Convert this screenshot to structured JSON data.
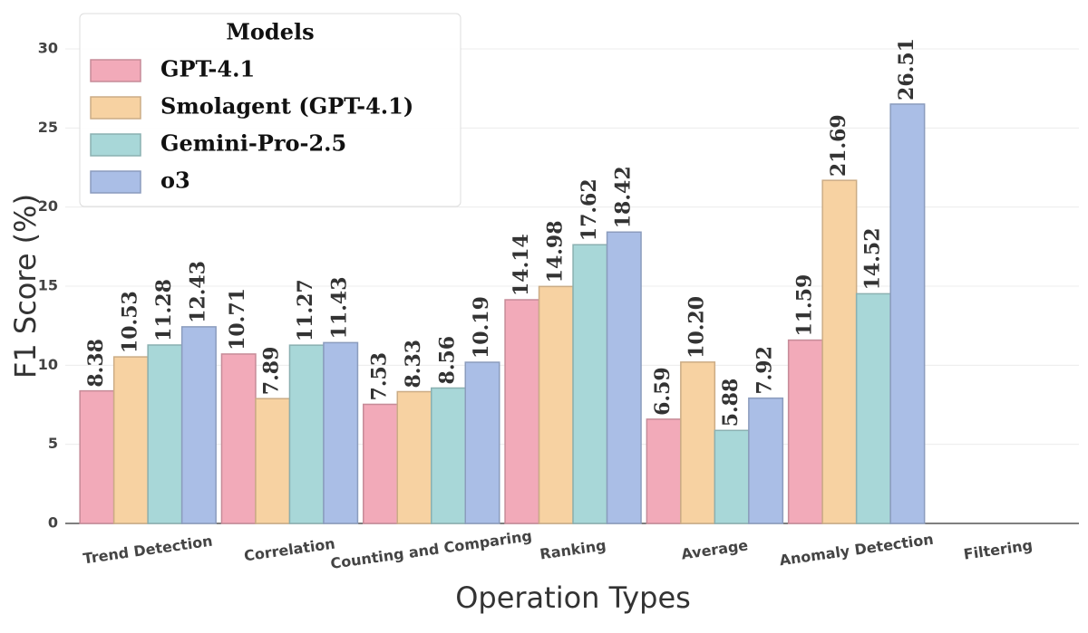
{
  "chart_data": {
    "type": "bar",
    "x_label": "Operation Types",
    "y_label": "F1 Score (%)",
    "categories": [
      "Trend Detection",
      "Correlation",
      "Counting and Comparing",
      "Ranking",
      "Average",
      "Anomaly Detection",
      "Filtering"
    ],
    "series": [
      {
        "name": "GPT-4.1",
        "color": "#f2aab9",
        "values": [
          8.38,
          10.71,
          7.53,
          14.14,
          6.59,
          11.59,
          null
        ],
        "value_labels": [
          "8.38",
          "10.71",
          "7.53",
          "14.14",
          "6.59",
          "11.59",
          null
        ]
      },
      {
        "name": "Smolagent (GPT-4.1)",
        "color": "#f7d2a2",
        "values": [
          10.53,
          7.89,
          8.33,
          14.98,
          10.2,
          21.69,
          null
        ],
        "value_labels": [
          "10.53",
          "7.89",
          "8.33",
          "14.98",
          "10.20",
          "21.69",
          null
        ]
      },
      {
        "name": "Gemini-Pro-2.5",
        "color": "#a8d7d8",
        "values": [
          11.28,
          11.27,
          8.56,
          17.62,
          5.88,
          14.52,
          null
        ],
        "value_labels": [
          "11.28",
          "11.27",
          "8.56",
          "17.62",
          "5.88",
          "14.52",
          null
        ]
      },
      {
        "name": "o3",
        "color": "#aabee6",
        "values": [
          12.43,
          11.43,
          10.19,
          18.42,
          7.92,
          26.51,
          null
        ],
        "value_labels": [
          "12.43",
          "11.43",
          "10.19",
          "18.42",
          "7.92",
          "26.51",
          null
        ]
      }
    ],
    "legend_title": "Models",
    "legend": "upper left",
    "ylim": [
      0,
      30
    ],
    "yticks": [
      0,
      5,
      10,
      15,
      20,
      25,
      30
    ],
    "grid": true
  }
}
